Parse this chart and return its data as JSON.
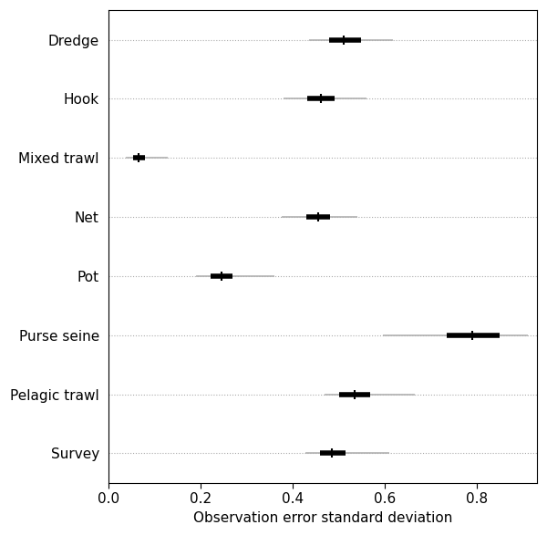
{
  "categories": [
    "Dredge",
    "Hook",
    "Mixed trawl",
    "Net",
    "Pot",
    "Purse seine",
    "Pelagic trawl",
    "Survey"
  ],
  "median": [
    0.51,
    0.46,
    0.065,
    0.455,
    0.245,
    0.79,
    0.535,
    0.485
  ],
  "thick_lo": [
    0.478,
    0.432,
    0.053,
    0.43,
    0.222,
    0.735,
    0.5,
    0.458
  ],
  "thick_hi": [
    0.548,
    0.49,
    0.078,
    0.48,
    0.268,
    0.85,
    0.568,
    0.515
  ],
  "thin_lo": [
    0.435,
    0.38,
    0.038,
    0.375,
    0.19,
    0.595,
    0.468,
    0.428
  ],
  "thin_hi": [
    0.618,
    0.56,
    0.128,
    0.54,
    0.36,
    0.91,
    0.665,
    0.61
  ],
  "thick_color": "#000000",
  "thin_color": "#b0b0b0",
  "median_color": "#000000",
  "bg_color": "#ffffff",
  "xlabel": "Observation error standard deviation",
  "xlim": [
    0.0,
    0.93
  ],
  "xticks": [
    0.0,
    0.2,
    0.4,
    0.6,
    0.8
  ],
  "tick_labels": [
    "0.0",
    "0.2",
    "0.4",
    "0.6",
    "0.8"
  ],
  "grid_color": "#aaaaaa",
  "thick_lw": 4.0,
  "thin_lw": 1.2,
  "median_marker_size": 7,
  "median_marker_lw": 1.5,
  "figsize": [
    6.0,
    5.87
  ],
  "dpi": 100
}
